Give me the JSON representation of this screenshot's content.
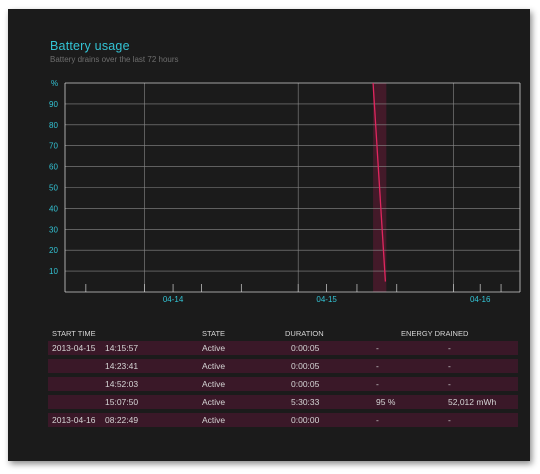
{
  "header": {
    "title": "Battery usage",
    "subtitle": "Battery drains over the last 72 hours"
  },
  "chart_data": {
    "type": "line",
    "title": "",
    "ylabel": "%",
    "ylim": [
      0,
      100
    ],
    "yticks": [
      "90",
      "80",
      "70",
      "60",
      "50",
      "40",
      "30",
      "20",
      "10"
    ],
    "xticks": [
      "04-14",
      "04-15",
      "04-16"
    ],
    "xlim_days": [
      0,
      2.4
    ],
    "grid": true,
    "series": [
      {
        "x": [
          1.625,
          1.69
        ],
        "y": [
          100,
          5
        ]
      }
    ],
    "highlight": {
      "x_start": 1.625,
      "x_end": 1.695
    },
    "colors": {
      "line": "#e0265e",
      "highlight": "#4a1a2c",
      "axis": "#d0d0d0",
      "tick_label": "#33c3d4"
    }
  },
  "table": {
    "headers": {
      "start_time": "START TIME",
      "state": "STATE",
      "duration": "DURATION",
      "energy": "ENERGY DRAINED"
    },
    "rows": [
      {
        "date": "2013-04-15",
        "time": "14:15:57",
        "state": "Active",
        "duration": "0:00:05",
        "percent": "-",
        "energy": "-"
      },
      {
        "date": "",
        "time": "14:23:41",
        "state": "Active",
        "duration": "0:00:05",
        "percent": "-",
        "energy": "-"
      },
      {
        "date": "",
        "time": "14:52:03",
        "state": "Active",
        "duration": "0:00:05",
        "percent": "-",
        "energy": "-"
      },
      {
        "date": "",
        "time": "15:07:50",
        "state": "Active",
        "duration": "5:30:33",
        "percent": "95 %",
        "energy": "52,012 mWh"
      },
      {
        "date": "2013-04-16",
        "time": "08:22:49",
        "state": "Active",
        "duration": "0:00:00",
        "percent": "-",
        "energy": "-"
      }
    ]
  }
}
